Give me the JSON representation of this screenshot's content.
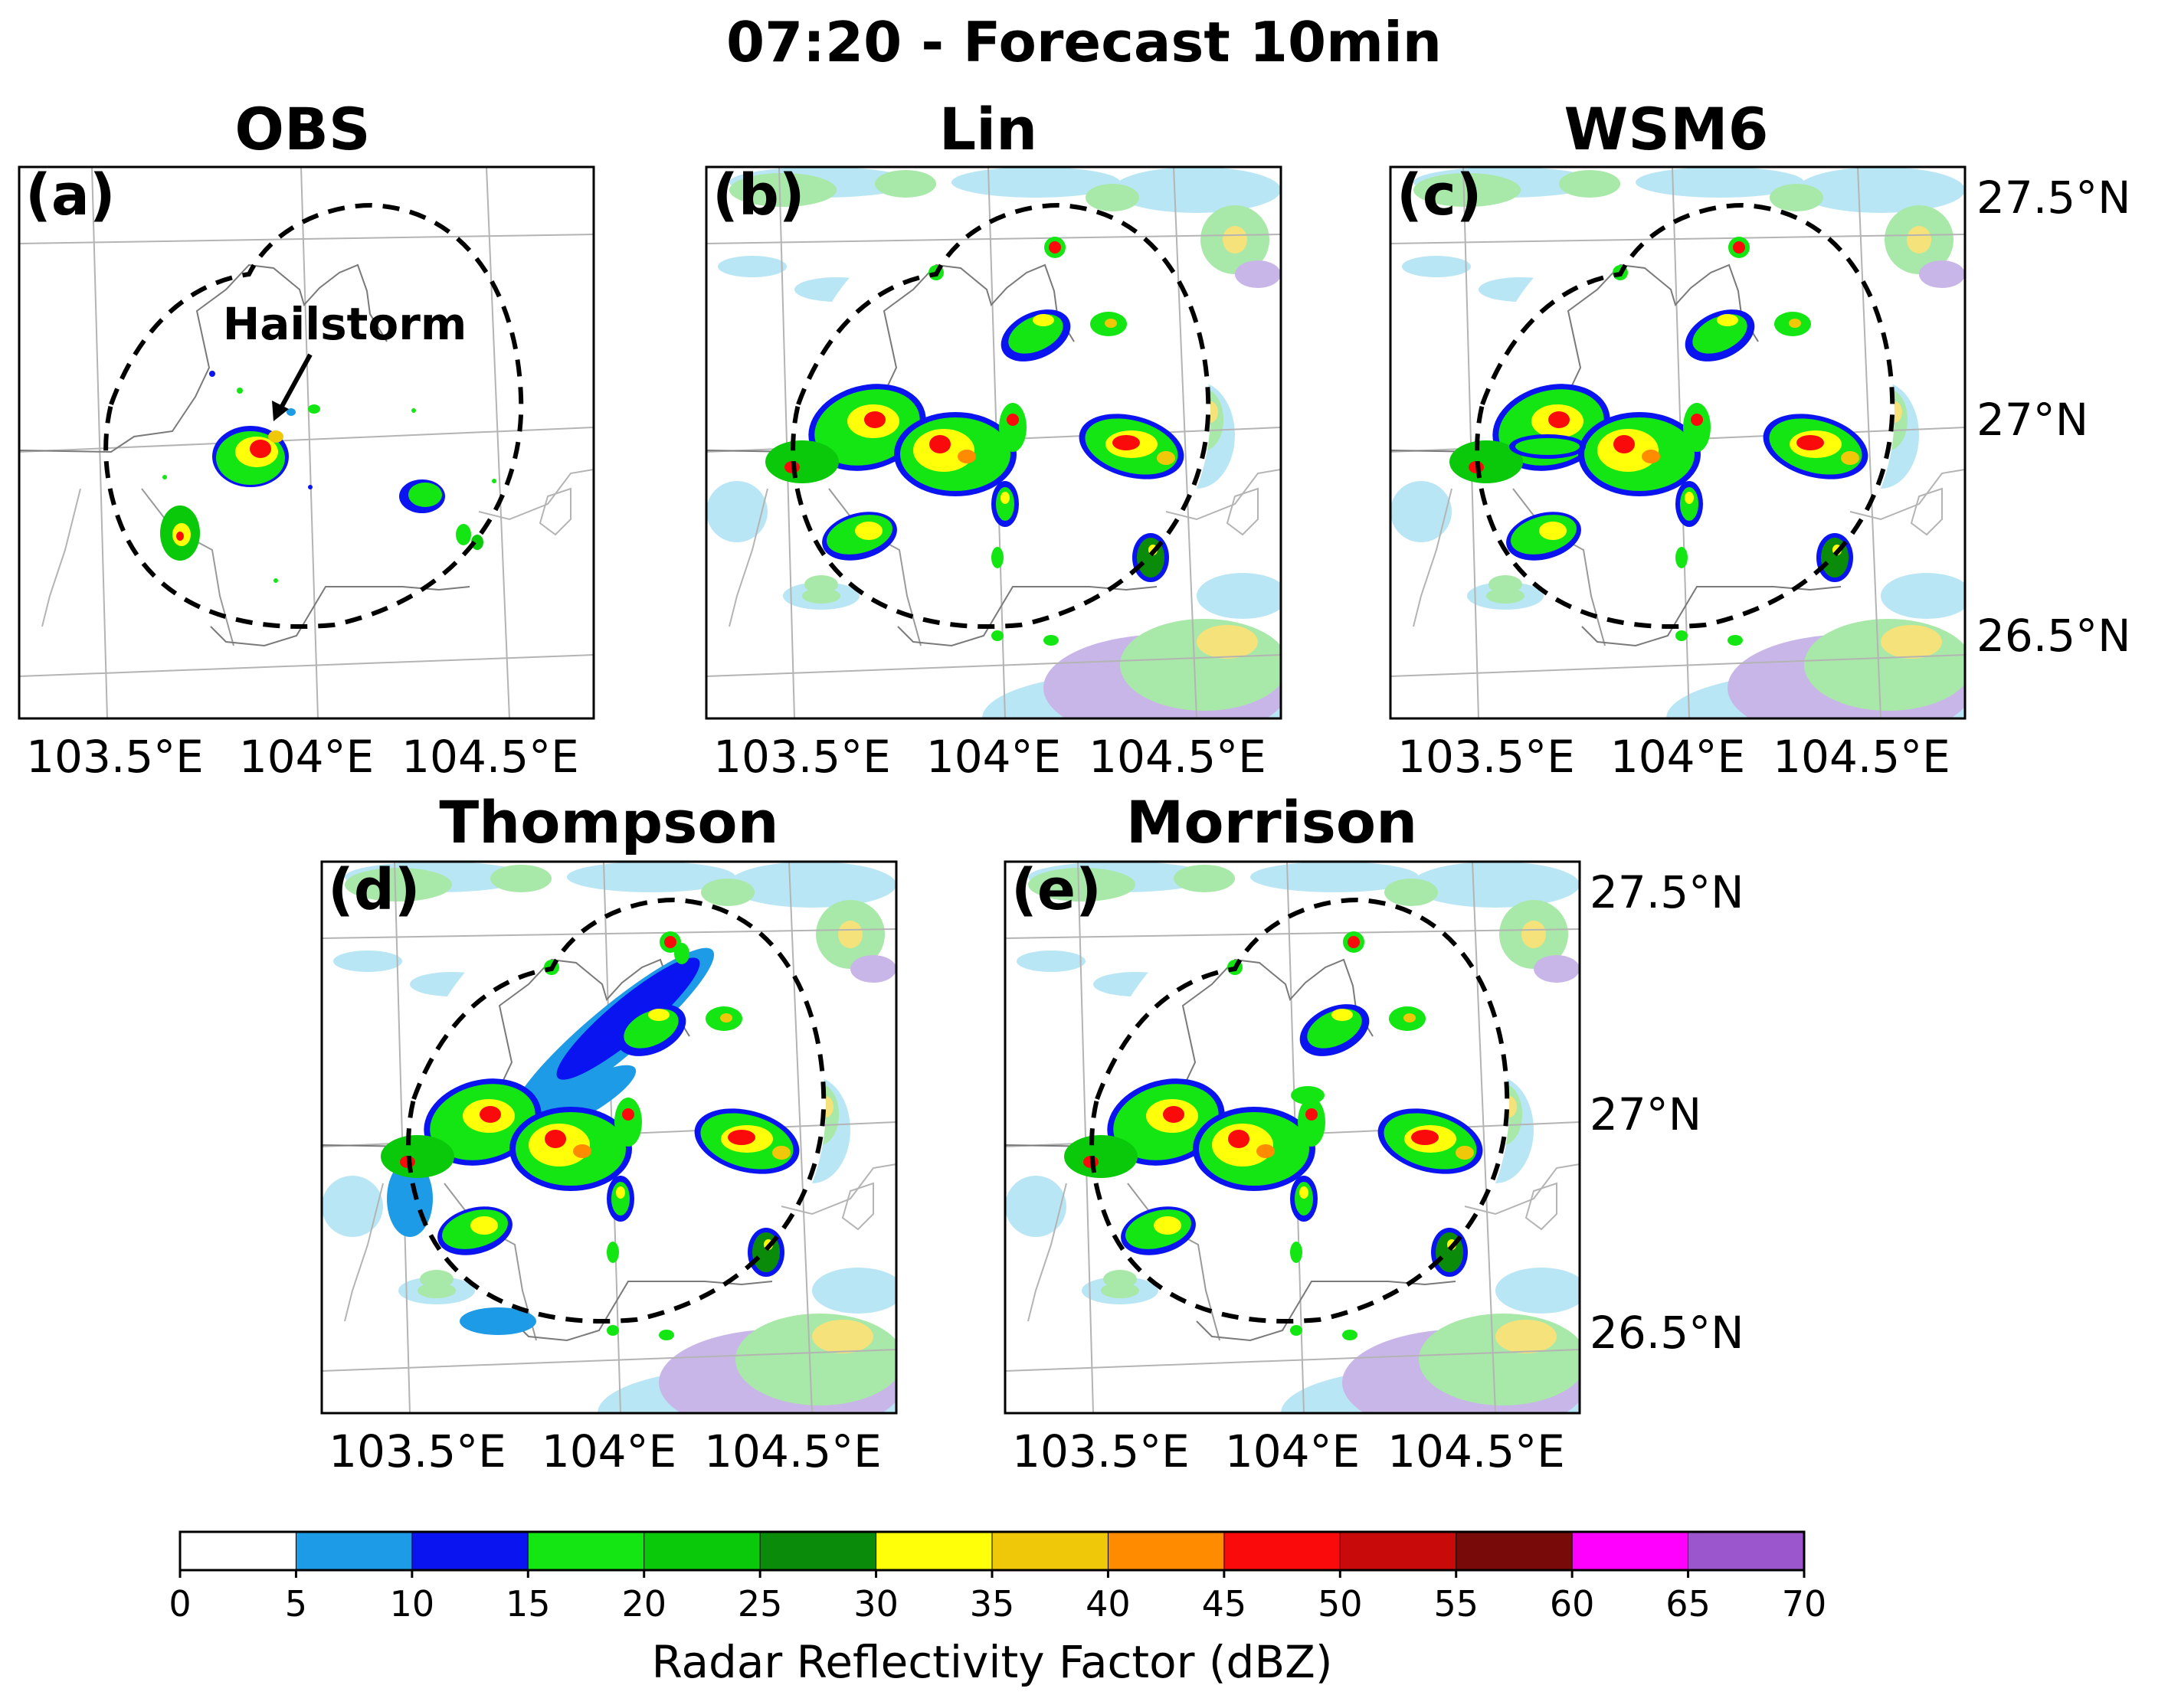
{
  "figure_title": "07:20 - Forecast 10min",
  "panels": [
    {
      "id": "a",
      "label": "(a)",
      "title": "OBS"
    },
    {
      "id": "b",
      "label": "(b)",
      "title": "Lin"
    },
    {
      "id": "c",
      "label": "(c)",
      "title": "WSM6"
    },
    {
      "id": "d",
      "label": "(d)",
      "title": "Thompson"
    },
    {
      "id": "e",
      "label": "(e)",
      "title": "Morrison"
    }
  ],
  "lon_ticks": [
    "103.5°E",
    "104°E",
    "104.5°E"
  ],
  "lat_ticks": [
    "27.5°N",
    "27°N",
    "26.5°N"
  ],
  "annotation": "Hailstorm",
  "colorbar": {
    "label": "Radar Reflectivity Factor (dBZ)",
    "ticks": [
      "0",
      "5",
      "10",
      "15",
      "20",
      "25",
      "30",
      "35",
      "40",
      "45",
      "50",
      "55",
      "60",
      "65",
      "70"
    ],
    "colors": [
      "#ffffff",
      "#1e9be6",
      "#0a14f0",
      "#14e614",
      "#0ac80a",
      "#0a8c0a",
      "#ffff0a",
      "#f0c80a",
      "#ff8c00",
      "#fa0a0a",
      "#c80a0a",
      "#780a0a",
      "#ff00ff",
      "#9b55cd"
    ]
  }
}
